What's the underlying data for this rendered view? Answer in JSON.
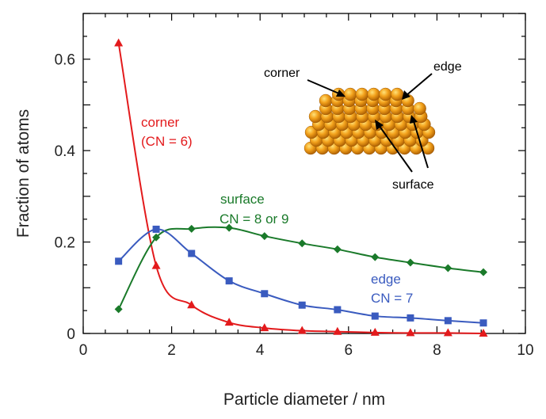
{
  "chart_data": {
    "type": "line",
    "xlabel": "Particle diameter / nm",
    "ylabel": "Fraction of atoms",
    "xlim": [
      0,
      10
    ],
    "ylim": [
      0,
      0.7
    ],
    "x_ticks": [
      0,
      2,
      4,
      6,
      8,
      10
    ],
    "x_tick_labels": [
      "0",
      "2",
      "4",
      "6",
      "8",
      "10"
    ],
    "y_ticks": [
      0,
      0.2,
      0.4,
      0.6
    ],
    "y_tick_labels": [
      "0",
      "0.2",
      "0.4",
      "0.6"
    ],
    "grid": false,
    "series": [
      {
        "key": "corner",
        "color": "#e31a1c",
        "marker": "triangle",
        "points": [
          [
            0.8,
            0.635
          ],
          [
            1.65,
            0.148
          ],
          [
            2.45,
            0.062
          ],
          [
            3.3,
            0.024
          ],
          [
            4.1,
            0.012
          ],
          [
            4.95,
            0.006
          ],
          [
            5.75,
            0.004
          ],
          [
            6.6,
            0.002
          ],
          [
            7.4,
            0.001
          ],
          [
            8.25,
            0.001
          ],
          [
            9.05,
            0.0
          ]
        ]
      },
      {
        "key": "surface",
        "color": "#1a7a2a",
        "marker": "diamond",
        "points": [
          [
            0.8,
            0.053
          ],
          [
            1.65,
            0.21
          ],
          [
            2.45,
            0.229
          ],
          [
            3.3,
            0.231
          ],
          [
            4.1,
            0.213
          ],
          [
            4.95,
            0.197
          ],
          [
            5.75,
            0.184
          ],
          [
            6.6,
            0.167
          ],
          [
            7.4,
            0.155
          ],
          [
            8.25,
            0.143
          ],
          [
            9.05,
            0.134
          ]
        ]
      },
      {
        "key": "edge",
        "color": "#3a5bbf",
        "marker": "square",
        "points": [
          [
            0.8,
            0.158
          ],
          [
            1.65,
            0.228
          ],
          [
            2.45,
            0.175
          ],
          [
            3.3,
            0.115
          ],
          [
            4.1,
            0.087
          ],
          [
            4.95,
            0.062
          ],
          [
            5.75,
            0.052
          ],
          [
            6.6,
            0.038
          ],
          [
            7.4,
            0.034
          ],
          [
            8.25,
            0.028
          ],
          [
            9.05,
            0.023
          ]
        ]
      }
    ],
    "annotations": {
      "corner": {
        "line1": "corner",
        "line2": "(CN = 6)"
      },
      "surface": {
        "line1": "surface",
        "line2": "CN = 8 or 9"
      },
      "edge": {
        "line1": "edge",
        "line2": "CN = 7"
      }
    },
    "inset_labels": {
      "corner": "corner",
      "edge": "edge",
      "surface": "surface"
    }
  }
}
